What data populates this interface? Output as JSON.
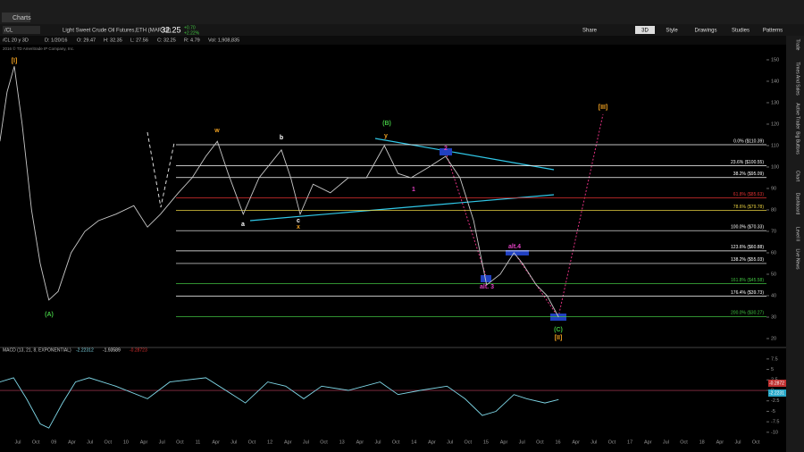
{
  "window": {
    "tab": "Charts"
  },
  "toolbar": {
    "symbol": "/CL",
    "description": "Light Sweet Crude Oil Futures,ETH (MAR 16)",
    "last": "32.25",
    "change": "+0.70",
    "change_pct": "+2.22%",
    "aggregation": "3D",
    "buttons": [
      "Share",
      "Style",
      "Drawings",
      "Studies",
      "Patterns"
    ]
  },
  "info_bar": {
    "symbol": "/CL 20 y 3D",
    "fields": [
      "D: 1/20/16",
      "O: 29.47",
      "H: 32.35",
      "L: 27.56",
      "C: 32.25",
      "R: 4.79",
      "Vol: 1,908,835"
    ]
  },
  "copyright": "2016 © TD Ameritrade IP Company, Inc.",
  "price_chart": {
    "type": "line",
    "x": [
      2008.25,
      2008.35,
      2008.45,
      2008.56,
      2008.69,
      2008.81,
      2008.93,
      2009.06,
      2009.24,
      2009.43,
      2009.62,
      2009.86,
      2010.11,
      2010.3,
      2010.48,
      2010.73,
      2010.92,
      2011.11,
      2011.27,
      2011.42,
      2011.63,
      2011.85,
      2012.16,
      2012.29,
      2012.42,
      2012.6,
      2012.84,
      2013.09,
      2013.34,
      2013.59,
      2013.78,
      2013.96,
      2014.21,
      2014.44,
      2014.64,
      2014.83,
      2014.95,
      2015.01,
      2015.2,
      2015.39,
      2015.51,
      2015.7,
      2015.85,
      2016.01
    ],
    "values": [
      112,
      135,
      147,
      120,
      80,
      55,
      38,
      42,
      60,
      70,
      75,
      78,
      82,
      72,
      78,
      88,
      95,
      105,
      112,
      97,
      78,
      95,
      108,
      95,
      78,
      92,
      88,
      95,
      95,
      110,
      97,
      95,
      100,
      105,
      95,
      75,
      55,
      45,
      50,
      60,
      55,
      45,
      40,
      30
    ],
    "color": "#c8c8c8",
    "ylim": [
      17.5,
      152.9
    ],
    "yticks": [
      20,
      30,
      40,
      50,
      60,
      70,
      80,
      90,
      100,
      110,
      120,
      130,
      140,
      150
    ],
    "fib_levels": [
      {
        "label": "0.0% ($110.39)",
        "price": 110.39,
        "color": "#ffffff"
      },
      {
        "label": "23.6% ($100.55)",
        "price": 100.55,
        "color": "#ffffff"
      },
      {
        "label": "38.2% ($95.09)",
        "price": 95.09,
        "color": "#ffffff"
      },
      {
        "label": "61.8% ($85.63)",
        "price": 85.63,
        "color": "#e03030"
      },
      {
        "label": "78.6% ($79.78)",
        "price": 79.78,
        "color": "#e8d040"
      },
      {
        "label": "100.0% ($70.33)",
        "price": 70.33,
        "color": "#ffffff"
      },
      {
        "label": "123.6% ($60.88)",
        "price": 60.88,
        "color": "#ffffff"
      },
      {
        "label": "138.2% ($55.03)",
        "price": 55.03,
        "color": "#ffffff"
      },
      {
        "label": "161.8% ($45.58)",
        "price": 45.58,
        "color": "#40c040"
      },
      {
        "label": "176.4% ($39.73)",
        "price": 39.73,
        "color": "#ffffff"
      },
      {
        "label": "200.0% ($30.27)",
        "price": 30.27,
        "color": "#40c040"
      }
    ],
    "wave_labels": [
      {
        "text": "[I]",
        "color": "#f0a020"
      },
      {
        "text": "(A)",
        "color": "#40c040"
      },
      {
        "text": "w",
        "color": "#f0a020"
      },
      {
        "text": "a",
        "color": "#ffffff"
      },
      {
        "text": "b",
        "color": "#ffffff"
      },
      {
        "text": "c",
        "color": "#ffffff"
      },
      {
        "text": "x",
        "color": "#f0a020"
      },
      {
        "text": "(B)",
        "color": "#40c040"
      },
      {
        "text": "y",
        "color": "#f0a020"
      },
      {
        "text": "1",
        "color": "#e040c0"
      },
      {
        "text": "2",
        "color": "#e040c0"
      },
      {
        "text": "alt. 3",
        "color": "#e040c0"
      },
      {
        "text": "alt.4",
        "color": "#e040c0"
      },
      {
        "text": "(C)",
        "color": "#40c040"
      },
      {
        "text": "[II]",
        "color": "#f0a020"
      },
      {
        "text": "[III]",
        "color": "#f0a020"
      }
    ]
  },
  "macd": {
    "title": "MACD (13, 21, 8, EXPONENTIAL)",
    "readouts": [
      "-2.22312",
      "-1.93589",
      "-0.28723"
    ],
    "tags": [
      "-0.2872",
      "-2.2231"
    ],
    "x": [
      2008.25,
      2008.44,
      2008.62,
      2008.81,
      2008.93,
      2009.12,
      2009.3,
      2009.49,
      2009.86,
      2010.3,
      2010.61,
      2011.11,
      2011.48,
      2011.66,
      2011.97,
      2012.22,
      2012.47,
      2012.72,
      2013.09,
      2013.53,
      2013.78,
      2014.09,
      2014.46,
      2014.71,
      2014.95,
      2015.14,
      2015.39,
      2015.57,
      2015.82,
      2016.01
    ],
    "values": [
      2,
      3,
      -2,
      -8,
      -9,
      -3,
      2,
      3,
      1,
      -2,
      2,
      3,
      -1,
      -3,
      2,
      1,
      -2,
      1,
      0,
      2,
      -1,
      0,
      1,
      -2,
      -6,
      -5,
      -1,
      -2,
      -3,
      -2.2
    ],
    "color": "#7fd8e8",
    "ylim": [
      -11.3,
      9.6
    ],
    "yticks": [
      -10,
      -7.5,
      -5,
      -2.5,
      0,
      2.5,
      5,
      7.5
    ]
  },
  "x_axis_labels": [
    "Jul",
    "Oct",
    "09",
    "Apr",
    "Jul",
    "Oct",
    "10",
    "Apr",
    "Jul",
    "Oct",
    "11",
    "Apr",
    "Jul",
    "Oct",
    "12",
    "Apr",
    "Jul",
    "Oct",
    "13",
    "Apr",
    "Jul",
    "Oct",
    "14",
    "Apr",
    "Jul",
    "Oct",
    "15",
    "Apr",
    "Jul",
    "Oct",
    "16",
    "Apr",
    "Jul",
    "Oct",
    "17",
    "Apr",
    "Jul",
    "Oct",
    "18",
    "Apr",
    "Jul",
    "Oct"
  ],
  "side_tabs": [
    "Trade",
    "Times And Sales",
    "Active Trader",
    "Big Buttons",
    "Chart",
    "Dashboard",
    "Level II",
    "Live News"
  ]
}
